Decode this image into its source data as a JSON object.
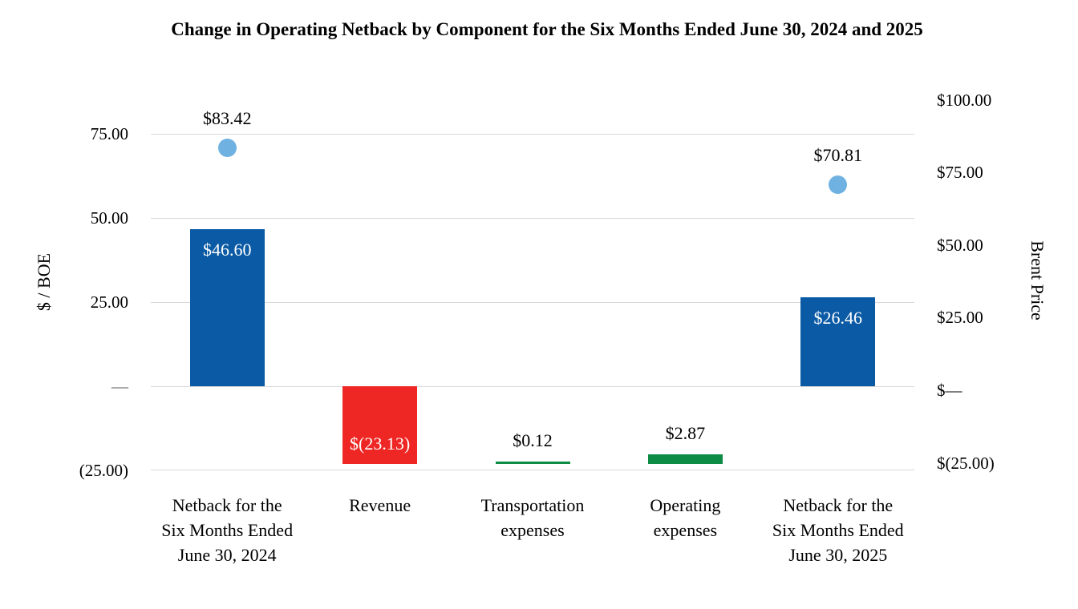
{
  "chart_data": {
    "type": "bar",
    "subtype": "waterfall-with-scatter",
    "title": "Change in Operating Netback by Component for the Six Months Ended June 30, 2024 and 2025",
    "grid": "horizontal-only",
    "legend": "none",
    "left_axis": {
      "title": "$ / BOE",
      "min": -28.1,
      "max": 88.6,
      "ticks": [
        {
          "value": 75,
          "label": "75.00"
        },
        {
          "value": 50,
          "label": "50.00"
        },
        {
          "value": 25,
          "label": "25.00"
        },
        {
          "value": 0,
          "label": "—",
          "muted": true
        },
        {
          "value": -25,
          "label": "(25.00)"
        }
      ],
      "gridlines": [
        75,
        50,
        25,
        0,
        -25
      ]
    },
    "right_axis": {
      "title": "Brent Price",
      "min": -31.2,
      "max": 104.1,
      "ticks": [
        {
          "value": 100,
          "label": "$100.00"
        },
        {
          "value": 75,
          "label": "$75.00"
        },
        {
          "value": 50,
          "label": "$50.00"
        },
        {
          "value": 25,
          "label": "$25.00"
        },
        {
          "value": 0,
          "label": "$—"
        },
        {
          "value": -25,
          "label": "$(25.00)"
        }
      ]
    },
    "categories": [
      {
        "key": "netback-2024",
        "label": "Netback for the Six Months Ended June 30, 2024",
        "bar": {
          "from": 0,
          "to": 46.6,
          "color_key": "blue"
        },
        "value": 46.6,
        "bar_label": {
          "text": "$46.60",
          "placement": "inside-top",
          "color_key": "white"
        },
        "dot": {
          "value": 83.42,
          "label": "$83.42"
        }
      },
      {
        "key": "revenue",
        "label": "Revenue",
        "bar": {
          "from": 0,
          "to": -23.13,
          "color_key": "red"
        },
        "value": -23.13,
        "bar_label": {
          "text": "$(23.13)",
          "placement": "inside-bottom",
          "color_key": "white"
        }
      },
      {
        "key": "transportation-expenses",
        "label": "Transportation expenses",
        "bar": {
          "from": -23.13,
          "to": -23.01,
          "color_key": "green"
        },
        "value": 0.12,
        "bar_label": {
          "text": "$0.12",
          "placement": "above",
          "color_key": "black"
        }
      },
      {
        "key": "operating-expenses",
        "label": "Operating expenses",
        "bar": {
          "from": -23.01,
          "to": -20.14,
          "color_key": "green"
        },
        "value": 2.87,
        "bar_label": {
          "text": "$2.87",
          "placement": "above",
          "color_key": "black"
        }
      },
      {
        "key": "netback-2025",
        "label": "Netback for the Six Months Ended June 30, 2025",
        "bar": {
          "from": 0,
          "to": 26.46,
          "color_key": "blue"
        },
        "value": 26.46,
        "bar_label": {
          "text": "$26.46",
          "placement": "inside-top",
          "color_key": "white"
        },
        "dot": {
          "value": 70.81,
          "label": "$70.81"
        }
      }
    ]
  },
  "colors": {
    "blue": "#0b5aa5",
    "red": "#ee2724",
    "green": "#0e8b44",
    "dot": "#6fb2e2",
    "gridline": "#d9d9d9",
    "white": "#ffffff",
    "black": "#000000"
  }
}
